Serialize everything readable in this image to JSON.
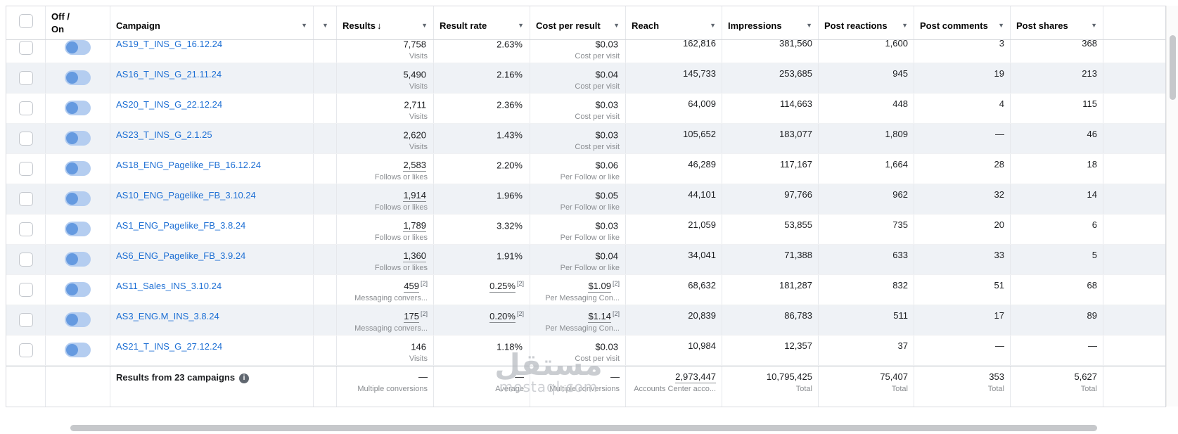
{
  "icons": {
    "chevron": "▼",
    "sort_desc": "↓",
    "info": "i"
  },
  "header": {
    "off_on": "Off / On",
    "campaign": "Campaign",
    "results": "Results",
    "result_rate": "Result rate",
    "cost_per_result": "Cost per result",
    "reach": "Reach",
    "impressions": "Impressions",
    "post_reactions": "Post reactions",
    "post_comments": "Post comments",
    "post_shares": "Post shares"
  },
  "rows": [
    {
      "name": "AS19_T_INS_G_16.12.24",
      "partial": true,
      "alt": false,
      "results": "7,758",
      "results_sup": "",
      "results_sub": "Visits",
      "results_u": false,
      "rate": "2.63%",
      "rate_sup": "",
      "rate_u": false,
      "cost": "$0.03",
      "cost_sup": "",
      "cost_sub": "Cost per visit",
      "cost_u": false,
      "reach": "162,816",
      "impressions": "381,560",
      "reactions": "1,600",
      "comments": "3",
      "shares": "368"
    },
    {
      "name": "AS16_T_INS_G_21.11.24",
      "partial": false,
      "alt": true,
      "results": "5,490",
      "results_sup": "",
      "results_sub": "Visits",
      "results_u": false,
      "rate": "2.16%",
      "rate_sup": "",
      "rate_u": false,
      "cost": "$0.04",
      "cost_sup": "",
      "cost_sub": "Cost per visit",
      "cost_u": false,
      "reach": "145,733",
      "impressions": "253,685",
      "reactions": "945",
      "comments": "19",
      "shares": "213"
    },
    {
      "name": "AS20_T_INS_G_22.12.24",
      "partial": false,
      "alt": false,
      "results": "2,711",
      "results_sup": "",
      "results_sub": "Visits",
      "results_u": false,
      "rate": "2.36%",
      "rate_sup": "",
      "rate_u": false,
      "cost": "$0.03",
      "cost_sup": "",
      "cost_sub": "Cost per visit",
      "cost_u": false,
      "reach": "64,009",
      "impressions": "114,663",
      "reactions": "448",
      "comments": "4",
      "shares": "115"
    },
    {
      "name": "AS23_T_INS_G_2.1.25",
      "partial": false,
      "alt": true,
      "results": "2,620",
      "results_sup": "",
      "results_sub": "Visits",
      "results_u": false,
      "rate": "1.43%",
      "rate_sup": "",
      "rate_u": false,
      "cost": "$0.03",
      "cost_sup": "",
      "cost_sub": "Cost per visit",
      "cost_u": false,
      "reach": "105,652",
      "impressions": "183,077",
      "reactions": "1,809",
      "comments": "—",
      "shares": "46"
    },
    {
      "name": "AS18_ENG_Pagelike_FB_16.12.24",
      "partial": false,
      "alt": false,
      "results": "2,583",
      "results_sup": "",
      "results_sub": "Follows or likes",
      "results_u": true,
      "rate": "2.20%",
      "rate_sup": "",
      "rate_u": false,
      "cost": "$0.06",
      "cost_sup": "",
      "cost_sub": "Per Follow or like",
      "cost_u": false,
      "reach": "46,289",
      "impressions": "117,167",
      "reactions": "1,664",
      "comments": "28",
      "shares": "18"
    },
    {
      "name": "AS10_ENG_Pagelike_FB_3.10.24",
      "partial": false,
      "alt": true,
      "results": "1,914",
      "results_sup": "",
      "results_sub": "Follows or likes",
      "results_u": true,
      "rate": "1.96%",
      "rate_sup": "",
      "rate_u": false,
      "cost": "$0.05",
      "cost_sup": "",
      "cost_sub": "Per Follow or like",
      "cost_u": false,
      "reach": "44,101",
      "impressions": "97,766",
      "reactions": "962",
      "comments": "32",
      "shares": "14"
    },
    {
      "name": "AS1_ENG_Pagelike_FB_3.8.24",
      "partial": false,
      "alt": false,
      "results": "1,789",
      "results_sup": "",
      "results_sub": "Follows or likes",
      "results_u": true,
      "rate": "3.32%",
      "rate_sup": "",
      "rate_u": false,
      "cost": "$0.03",
      "cost_sup": "",
      "cost_sub": "Per Follow or like",
      "cost_u": false,
      "reach": "21,059",
      "impressions": "53,855",
      "reactions": "735",
      "comments": "20",
      "shares": "6"
    },
    {
      "name": "AS6_ENG_Pagelike_FB_3.9.24",
      "partial": false,
      "alt": true,
      "results": "1,360",
      "results_sup": "",
      "results_sub": "Follows or likes",
      "results_u": true,
      "rate": "1.91%",
      "rate_sup": "",
      "rate_u": false,
      "cost": "$0.04",
      "cost_sup": "",
      "cost_sub": "Per Follow or like",
      "cost_u": false,
      "reach": "34,041",
      "impressions": "71,388",
      "reactions": "633",
      "comments": "33",
      "shares": "5"
    },
    {
      "name": "AS11_Sales_INS_3.10.24",
      "partial": false,
      "alt": false,
      "results": "459",
      "results_sup": "[2]",
      "results_sub": "Messaging convers...",
      "results_u": true,
      "rate": "0.25%",
      "rate_sup": "[2]",
      "rate_u": true,
      "cost": "$1.09",
      "cost_sup": "[2]",
      "cost_sub": "Per Messaging Con...",
      "cost_u": true,
      "reach": "68,632",
      "impressions": "181,287",
      "reactions": "832",
      "comments": "51",
      "shares": "68"
    },
    {
      "name": "AS3_ENG.M_INS_3.8.24",
      "partial": false,
      "alt": true,
      "results": "175",
      "results_sup": "[2]",
      "results_sub": "Messaging convers...",
      "results_u": true,
      "rate": "0.20%",
      "rate_sup": "[2]",
      "rate_u": true,
      "cost": "$1.14",
      "cost_sup": "[2]",
      "cost_sub": "Per Messaging Con...",
      "cost_u": true,
      "reach": "20,839",
      "impressions": "86,783",
      "reactions": "511",
      "comments": "17",
      "shares": "89"
    },
    {
      "name": "AS21_T_INS_G_27.12.24",
      "partial": false,
      "alt": false,
      "results": "146",
      "results_sup": "",
      "results_sub": "Visits",
      "results_u": false,
      "rate": "1.18%",
      "rate_sup": "",
      "rate_u": false,
      "cost": "$0.03",
      "cost_sup": "",
      "cost_sub": "Cost per visit",
      "cost_u": false,
      "reach": "10,984",
      "impressions": "12,357",
      "reactions": "37",
      "comments": "—",
      "shares": "—"
    }
  ],
  "footer": {
    "label": "Results from 23 campaigns",
    "results": "—",
    "results_sub": "Multiple conversions",
    "rate": "—",
    "rate_sub": "Average",
    "cost": "—",
    "cost_sub": "Multiple conversions",
    "reach": "2,973,447",
    "reach_sub": "Accounts Center acco...",
    "impressions": "10,795,425",
    "impressions_sub": "Total",
    "reactions": "75,407",
    "reactions_sub": "Total",
    "comments": "353",
    "comments_sub": "Total",
    "shares": "5,627",
    "shares_sub": "Total"
  },
  "watermark": {
    "arabic": "مستقل",
    "latin": "mostaql.com"
  }
}
